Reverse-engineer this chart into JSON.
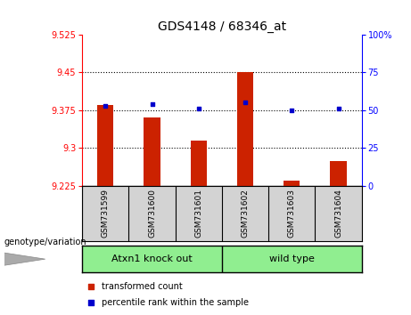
{
  "title": "GDS4148 / 68346_at",
  "samples": [
    "GSM731599",
    "GSM731600",
    "GSM731601",
    "GSM731602",
    "GSM731603",
    "GSM731604"
  ],
  "red_values": [
    9.385,
    9.36,
    9.315,
    9.45,
    9.235,
    9.275
  ],
  "blue_values": [
    53,
    54,
    51,
    55,
    50,
    51
  ],
  "ylim_left": [
    9.225,
    9.525
  ],
  "ylim_right": [
    0,
    100
  ],
  "yticks_left": [
    9.225,
    9.3,
    9.375,
    9.45,
    9.525
  ],
  "yticks_right": [
    0,
    25,
    50,
    75,
    100
  ],
  "ytick_labels_left": [
    "9.225",
    "9.3",
    "9.375",
    "9.45",
    "9.525"
  ],
  "ytick_labels_right": [
    "0",
    "25",
    "50",
    "75",
    "100%"
  ],
  "hlines": [
    9.3,
    9.375,
    9.45
  ],
  "group1_label": "Atxn1 knock out",
  "group2_label": "wild type",
  "green_color": "#90ee90",
  "bar_color": "#cc2200",
  "dot_color": "#0000cc",
  "bar_width": 0.35,
  "xlabel_genotype": "genotype/variation",
  "legend_red": "transformed count",
  "legend_blue": "percentile rank within the sample",
  "bg_color_plot": "#ffffff",
  "bg_color_xtick": "#d3d3d3",
  "base_value": 9.225
}
